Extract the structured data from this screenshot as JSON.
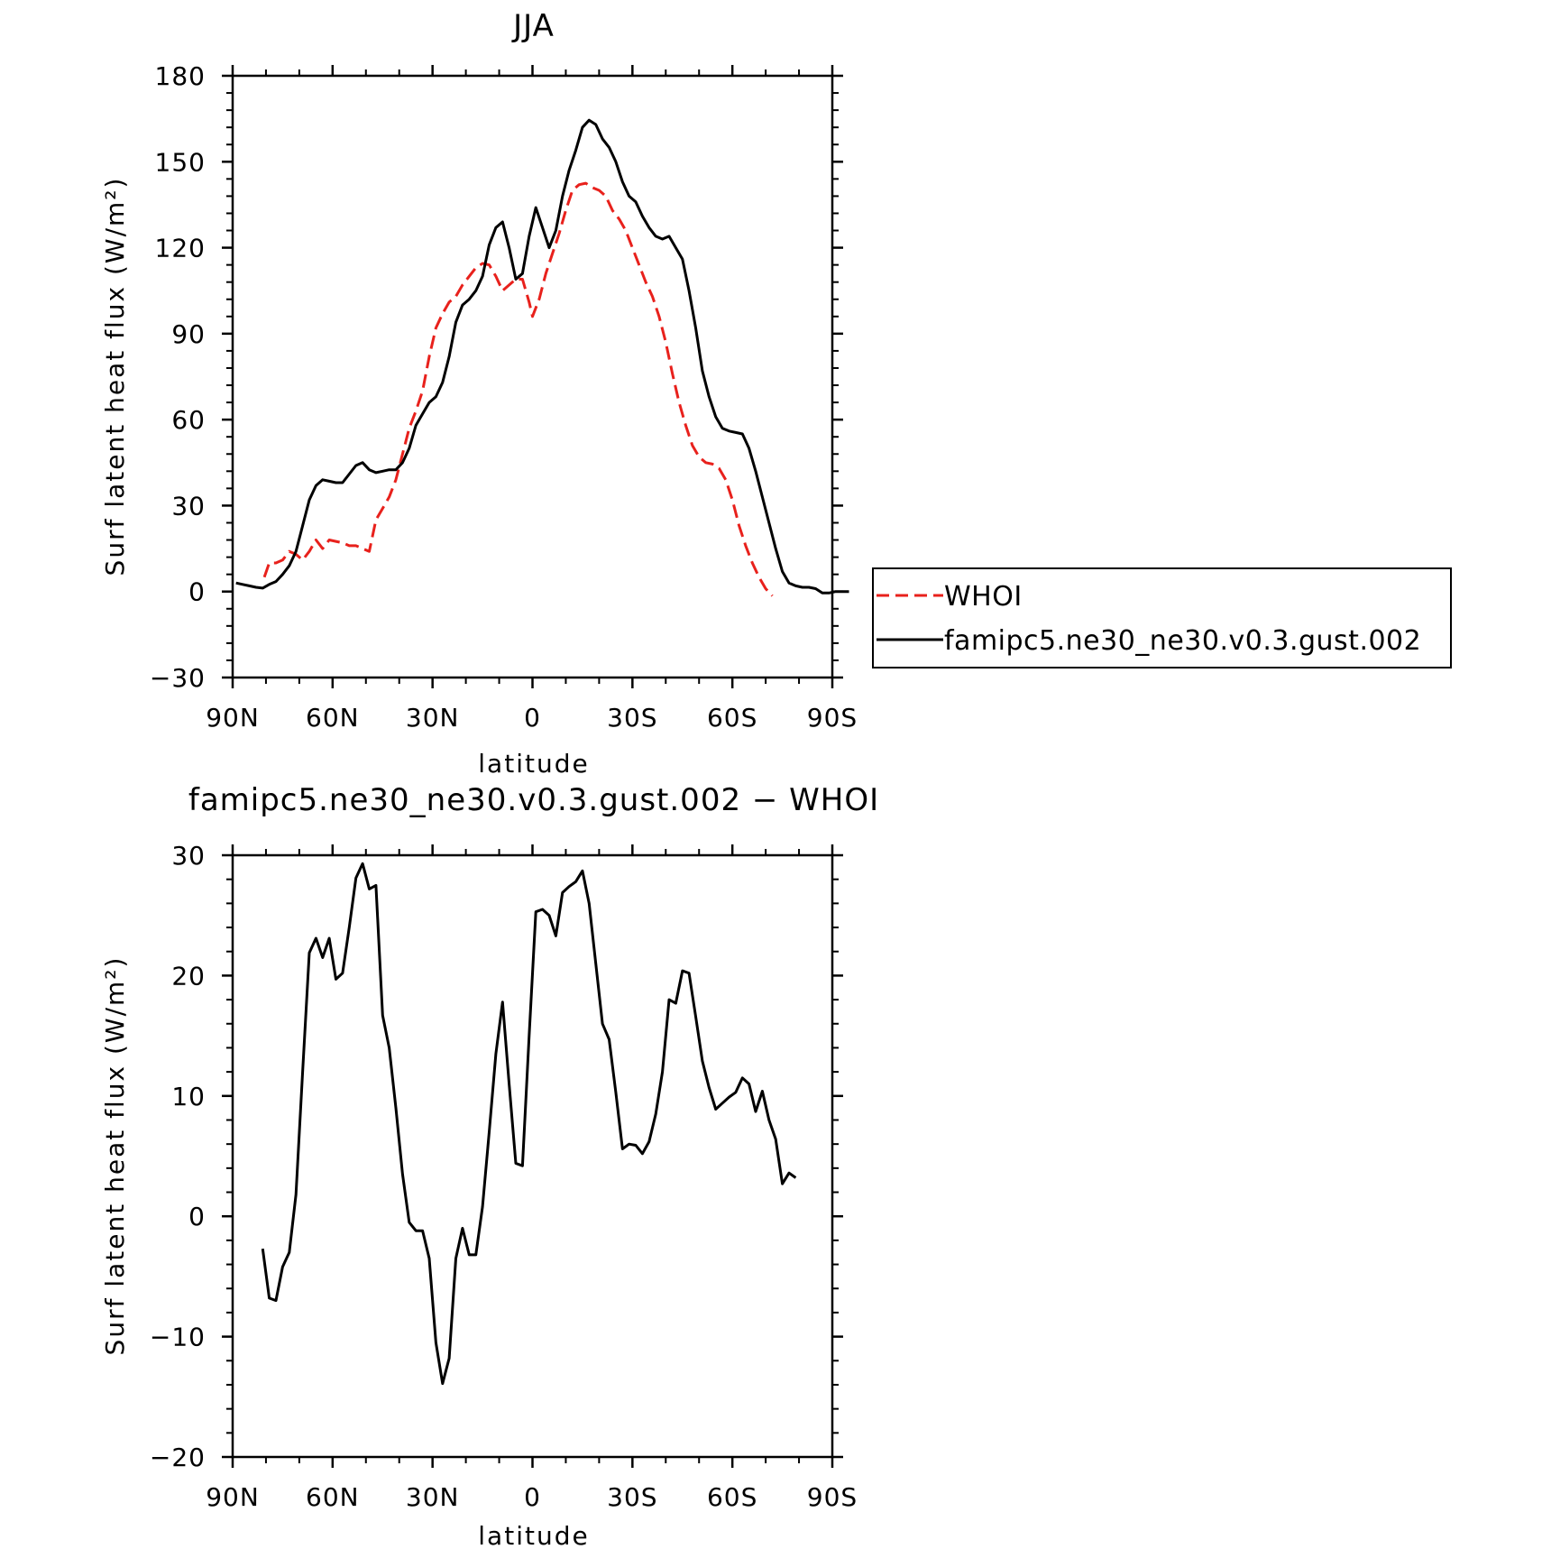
{
  "chart_data": [
    {
      "type": "line",
      "title": "JJA",
      "xlabel": "latitude",
      "ylabel": "Surf latent heat flux (W/m²)",
      "xlim": [
        -90,
        90
      ],
      "ylim": [
        -30,
        180
      ],
      "x_ticks": [
        {
          "value": -90,
          "label": "90N"
        },
        {
          "value": -60,
          "label": "60N"
        },
        {
          "value": -30,
          "label": "30N"
        },
        {
          "value": 0,
          "label": "0"
        },
        {
          "value": 30,
          "label": "30S"
        },
        {
          "value": 60,
          "label": "60S"
        },
        {
          "value": 90,
          "label": "90S"
        }
      ],
      "y_ticks": [
        -30,
        0,
        30,
        60,
        90,
        120,
        150,
        180
      ],
      "y_tick_labels": [
        "−30",
        "0",
        "30",
        "60",
        "90",
        "120",
        "150",
        "180"
      ],
      "legend": {
        "position": "right-outside"
      },
      "series": [
        {
          "name": "WHOI",
          "color": "#e8211c",
          "dash": "dashed",
          "points": [
            [
              -80.5,
              5
            ],
            [
              -79,
              10
            ],
            [
              -77,
              10
            ],
            [
              -75,
              11
            ],
            [
              -73,
              14
            ],
            [
              -71,
              13
            ],
            [
              -69,
              11
            ],
            [
              -67,
              14
            ],
            [
              -65,
              18
            ],
            [
              -63,
              15
            ],
            [
              -61,
              18
            ],
            [
              -59,
              17.5
            ],
            [
              -57,
              17
            ],
            [
              -55,
              16
            ],
            [
              -53,
              16
            ],
            [
              -51,
              15
            ],
            [
              -49,
              14
            ],
            [
              -47,
              25
            ],
            [
              -45,
              29
            ],
            [
              -43,
              33
            ],
            [
              -41,
              39
            ],
            [
              -39,
              48
            ],
            [
              -37,
              57
            ],
            [
              -35,
              63
            ],
            [
              -33,
              70
            ],
            [
              -31,
              82
            ],
            [
              -29,
              92
            ],
            [
              -27,
              97
            ],
            [
              -25,
              101
            ],
            [
              -23,
              103
            ],
            [
              -21,
              107
            ],
            [
              -19,
              110
            ],
            [
              -17,
              113
            ],
            [
              -15,
              114.5
            ],
            [
              -13,
              114
            ],
            [
              -11,
              110
            ],
            [
              -9,
              105
            ],
            [
              -7,
              107
            ],
            [
              -5,
              109
            ],
            [
              -3,
              109
            ],
            [
              -1,
              101
            ],
            [
              0,
              96
            ],
            [
              2,
              102
            ],
            [
              4,
              111
            ],
            [
              6,
              118
            ],
            [
              8,
              125
            ],
            [
              10,
              133
            ],
            [
              12,
              140
            ],
            [
              14,
              142
            ],
            [
              16,
              142.5
            ],
            [
              18,
              141
            ],
            [
              20,
              140
            ],
            [
              22,
              138
            ],
            [
              24,
              133
            ],
            [
              26,
              130
            ],
            [
              28,
              126
            ],
            [
              30,
              120
            ],
            [
              32,
              114
            ],
            [
              34,
              108
            ],
            [
              36,
              103
            ],
            [
              38,
              96
            ],
            [
              40,
              87
            ],
            [
              42,
              76
            ],
            [
              44,
              66
            ],
            [
              46,
              58
            ],
            [
              48,
              51
            ],
            [
              50,
              47
            ],
            [
              52,
              45
            ],
            [
              54,
              44.5
            ],
            [
              56,
              43
            ],
            [
              58,
              39
            ],
            [
              60,
              32
            ],
            [
              62,
              23
            ],
            [
              64,
              16
            ],
            [
              66,
              10
            ],
            [
              68,
              5
            ],
            [
              70,
              1
            ],
            [
              72,
              -1.5
            ]
          ]
        },
        {
          "name": "famipc5.ne30_ne30.v0.3.gust.002",
          "color": "#000000",
          "dash": "solid",
          "points": [
            [
              -89,
              3
            ],
            [
              -87,
              2.5
            ],
            [
              -85,
              2
            ],
            [
              -83,
              1.5
            ],
            [
              -81,
              1.2
            ],
            [
              -79,
              2.5
            ],
            [
              -77,
              3.5
            ],
            [
              -75,
              6
            ],
            [
              -73,
              9
            ],
            [
              -71,
              14
            ],
            [
              -69,
              23
            ],
            [
              -67,
              32
            ],
            [
              -65,
              37
            ],
            [
              -63,
              39
            ],
            [
              -61,
              38.5
            ],
            [
              -59,
              38
            ],
            [
              -57,
              38
            ],
            [
              -55,
              41
            ],
            [
              -53,
              44
            ],
            [
              -51,
              45
            ],
            [
              -49,
              42.5
            ],
            [
              -47,
              41.5
            ],
            [
              -45,
              42
            ],
            [
              -43,
              42.5
            ],
            [
              -41,
              42.5
            ],
            [
              -39,
              45
            ],
            [
              -37,
              50
            ],
            [
              -35,
              58
            ],
            [
              -33,
              62
            ],
            [
              -31,
              66
            ],
            [
              -29,
              68
            ],
            [
              -27,
              73
            ],
            [
              -25,
              82
            ],
            [
              -23,
              94
            ],
            [
              -21,
              100
            ],
            [
              -19,
              102
            ],
            [
              -17,
              105
            ],
            [
              -15,
              110
            ],
            [
              -13,
              121
            ],
            [
              -11,
              127
            ],
            [
              -9,
              129
            ],
            [
              -7,
              120
            ],
            [
              -5,
              109
            ],
            [
              -3,
              111
            ],
            [
              -1,
              124
            ],
            [
              1,
              134
            ],
            [
              3,
              127
            ],
            [
              5,
              120
            ],
            [
              7,
              126
            ],
            [
              9,
              138
            ],
            [
              11,
              147
            ],
            [
              13,
              154
            ],
            [
              15,
              162
            ],
            [
              17,
              164.5
            ],
            [
              19,
              163
            ],
            [
              21,
              158
            ],
            [
              23,
              155
            ],
            [
              25,
              150
            ],
            [
              27,
              143
            ],
            [
              29,
              138
            ],
            [
              31,
              136
            ],
            [
              33,
              131
            ],
            [
              35,
              127
            ],
            [
              37,
              124
            ],
            [
              39,
              123
            ],
            [
              41,
              124
            ],
            [
              43,
              120
            ],
            [
              45,
              116
            ],
            [
              47,
              105
            ],
            [
              49,
              92
            ],
            [
              51,
              77
            ],
            [
              53,
              68
            ],
            [
              55,
              61
            ],
            [
              57,
              57
            ],
            [
              59,
              56
            ],
            [
              61,
              55.5
            ],
            [
              63,
              55
            ],
            [
              65,
              50
            ],
            [
              67,
              42
            ],
            [
              69,
              33
            ],
            [
              71,
              24
            ],
            [
              73,
              15
            ],
            [
              75,
              7
            ],
            [
              77,
              3
            ],
            [
              79,
              2
            ],
            [
              81,
              1.5
            ],
            [
              83,
              1.5
            ],
            [
              85,
              1
            ],
            [
              87,
              -0.5
            ],
            [
              89,
              -0.5
            ],
            [
              91,
              0
            ],
            [
              93,
              0
            ],
            [
              95,
              0
            ]
          ]
        }
      ]
    },
    {
      "type": "line",
      "title": "famipc5.ne30_ne30.v0.3.gust.002 − WHOI",
      "xlabel": "latitude",
      "ylabel": "Surf latent heat flux (W/m²)",
      "xlim": [
        -90,
        90
      ],
      "ylim": [
        -20,
        30
      ],
      "x_ticks": [
        {
          "value": -90,
          "label": "90N"
        },
        {
          "value": -60,
          "label": "60N"
        },
        {
          "value": -30,
          "label": "30N"
        },
        {
          "value": 0,
          "label": "0"
        },
        {
          "value": 30,
          "label": "30S"
        },
        {
          "value": 60,
          "label": "60S"
        },
        {
          "value": 90,
          "label": "90S"
        }
      ],
      "y_ticks": [
        -20,
        -10,
        0,
        10,
        20,
        30
      ],
      "y_tick_labels": [
        "−20",
        "−10",
        "0",
        "10",
        "20",
        "30"
      ],
      "series": [
        {
          "color": "#000000",
          "dash": "solid",
          "points": [
            [
              -81,
              -2.7
            ],
            [
              -79,
              -6.8
            ],
            [
              -77,
              -7
            ],
            [
              -75,
              -4.2
            ],
            [
              -73,
              -3
            ],
            [
              -71,
              1.8
            ],
            [
              -69,
              12
            ],
            [
              -67,
              21.9
            ],
            [
              -65,
              23.1
            ],
            [
              -63,
              21.5
            ],
            [
              -61,
              23.1
            ],
            [
              -59,
              19.7
            ],
            [
              -57,
              20.2
            ],
            [
              -55,
              24
            ],
            [
              -53,
              28.1
            ],
            [
              -51,
              29.3
            ],
            [
              -49,
              27.2
            ],
            [
              -47,
              27.5
            ],
            [
              -45,
              16.7
            ],
            [
              -43,
              14
            ],
            [
              -41,
              9
            ],
            [
              -39,
              3.5
            ],
            [
              -37,
              -0.5
            ],
            [
              -35,
              -1.2
            ],
            [
              -33,
              -1.2
            ],
            [
              -31,
              -3.5
            ],
            [
              -29,
              -10.5
            ],
            [
              -27,
              -13.9
            ],
            [
              -25,
              -11.8
            ],
            [
              -23,
              -3.5
            ],
            [
              -21,
              -1
            ],
            [
              -19,
              -3.2
            ],
            [
              -17,
              -3.2
            ],
            [
              -15,
              0.8
            ],
            [
              -13,
              7
            ],
            [
              -11,
              13.5
            ],
            [
              -9,
              17.8
            ],
            [
              -7,
              11
            ],
            [
              -5,
              4.4
            ],
            [
              -3,
              4.2
            ],
            [
              -1,
              15
            ],
            [
              1,
              25.3
            ],
            [
              3,
              25.5
            ],
            [
              5,
              25
            ],
            [
              7,
              23.3
            ],
            [
              9,
              26.9
            ],
            [
              11,
              27.4
            ],
            [
              13,
              27.8
            ],
            [
              15,
              28.7
            ],
            [
              17,
              26
            ],
            [
              19,
              21
            ],
            [
              21,
              16
            ],
            [
              23,
              14.7
            ],
            [
              25,
              10.3
            ],
            [
              27,
              5.6
            ],
            [
              29,
              6
            ],
            [
              31,
              5.9
            ],
            [
              33,
              5.2
            ],
            [
              35,
              6.2
            ],
            [
              37,
              8.5
            ],
            [
              39,
              12
            ],
            [
              41,
              18
            ],
            [
              43,
              17.7
            ],
            [
              45,
              20.4
            ],
            [
              47,
              20.2
            ],
            [
              49,
              16.6
            ],
            [
              51,
              12.9
            ],
            [
              53,
              10.7
            ],
            [
              55,
              8.9
            ],
            [
              57,
              9.4
            ],
            [
              59,
              9.9
            ],
            [
              61,
              10.3
            ],
            [
              63,
              11.5
            ],
            [
              65,
              11
            ],
            [
              67,
              8.7
            ],
            [
              69,
              10.4
            ],
            [
              71,
              8
            ],
            [
              73,
              6.4
            ],
            [
              75,
              2.7
            ],
            [
              77,
              3.6
            ],
            [
              79,
              3.2
            ]
          ]
        }
      ]
    }
  ]
}
